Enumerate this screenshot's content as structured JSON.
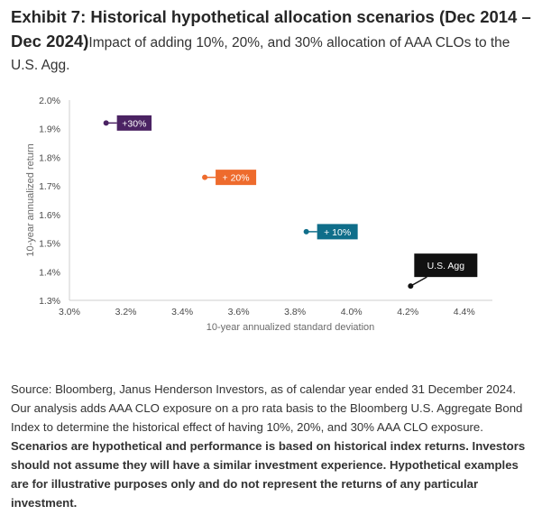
{
  "title": {
    "bold": "Exhibit 7: Historical hypothetical allocation scenarios (Dec 2014 – Dec 2024)",
    "subtitle": "Impact of adding 10%, 20%, and 30% allocation of AAA CLOs to the U.S. Agg."
  },
  "chart_data": {
    "type": "scatter",
    "xlabel": "10-year annualized standard deviation",
    "ylabel": "10-year annualized return",
    "xlim": [
      3.0,
      4.5
    ],
    "ylim": [
      1.3,
      2.0
    ],
    "x_ticks": [
      "3.0%",
      "3.2%",
      "3.4%",
      "3.6%",
      "3.8%",
      "4.0%",
      "4.2%",
      "4.4%"
    ],
    "y_ticks": [
      "2.0%",
      "1.9%",
      "1.8%",
      "1.7%",
      "1.6%",
      "1.5%",
      "1.4%",
      "1.3%"
    ],
    "grid": false,
    "points": [
      {
        "label": "+30%",
        "x": 3.13,
        "y": 1.92,
        "color": "#4b2363"
      },
      {
        "label": "+ 20%",
        "x": 3.48,
        "y": 1.73,
        "color": "#ee6b2d"
      },
      {
        "label": "+ 10%",
        "x": 3.84,
        "y": 1.54,
        "color": "#0f6e8a"
      },
      {
        "label": "U.S. Agg",
        "x": 4.21,
        "y": 1.35,
        "color": "#111111"
      }
    ]
  },
  "source": {
    "text": "Source: Bloomberg, Janus Henderson Investors, as of calendar year ended 31 December 2024. Our analysis adds AAA CLO exposure on a pro rata basis to the Bloomberg U.S. Aggregate Bond Index to determine the historical effect of having 10%, 20%, and 30% AAA CLO exposure.",
    "bold": "Scenarios are hypothetical and performance is based on historical index returns. Investors should not assume they will have a similar investment experience. Hypothetical examples are for illustrative purposes only and do not represent the returns of any particular investment."
  }
}
